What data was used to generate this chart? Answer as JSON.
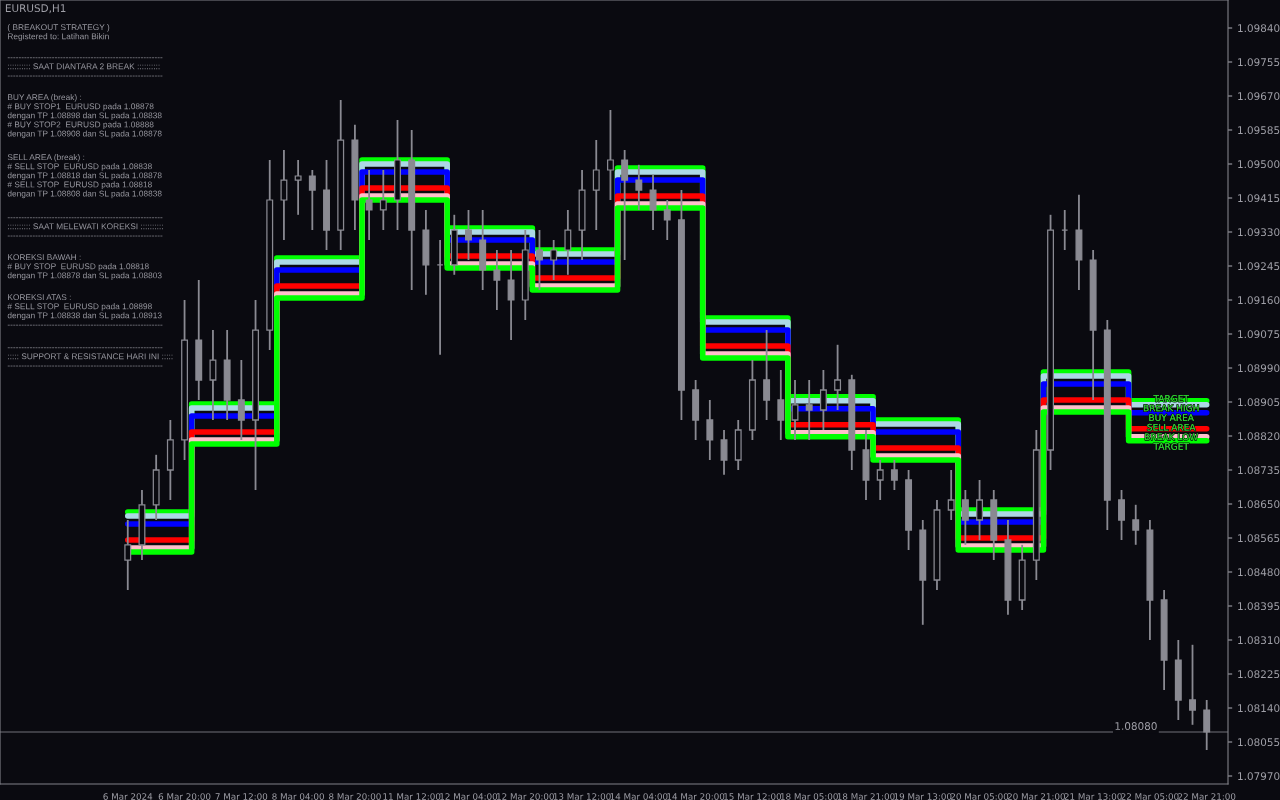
{
  "chart_data": {
    "type": "candlestick",
    "title": "EURUSD,H1",
    "color": "#8a8a92",
    "categories": [
      "6 Mar 2024",
      null,
      null,
      null,
      "6 Mar 20:00",
      null,
      null,
      null,
      "7 Mar 12:00",
      null,
      null,
      null,
      "8 Mar 04:00",
      null,
      null,
      null,
      "8 Mar 20:00",
      null,
      null,
      null,
      "11 Mar 12:00",
      null,
      null,
      null,
      "12 Mar 04:00",
      null,
      null,
      null,
      "12 Mar 20:00",
      null,
      null,
      null,
      "13 Mar 12:00",
      null,
      null,
      null,
      "14 Mar 04:00",
      null,
      null,
      null,
      "14 Mar 20:00",
      null,
      null,
      null,
      "15 Mar 12:00",
      null,
      null,
      null,
      "18 Mar 05:00",
      null,
      null,
      null,
      "18 Mar 21:00",
      null,
      null,
      null,
      "19 Mar 13:00",
      null,
      null,
      null,
      "20 Mar 05:00",
      null,
      null,
      null,
      "20 Mar 21:00",
      null,
      null,
      null,
      "21 Mar 13:00",
      null,
      null,
      null,
      "22 Mar 05:00",
      null,
      null,
      null,
      "22 Mar 21:00"
    ],
    "ohlc": [
      [
        1.0851,
        1.0861,
        1.08435,
        1.08548
      ],
      [
        1.08548,
        1.08685,
        1.0851,
        1.08648
      ],
      [
        1.08648,
        1.08773,
        1.0861,
        1.08735
      ],
      [
        1.08735,
        1.0886,
        1.0866,
        1.0881
      ],
      [
        1.0881,
        1.0916,
        1.0876,
        1.0906
      ],
      [
        1.0906,
        1.0921,
        1.0891,
        1.0896
      ],
      [
        1.0896,
        1.09085,
        1.0886,
        1.0901
      ],
      [
        1.0901,
        1.09085,
        1.0886,
        1.0891
      ],
      [
        1.0891,
        1.0901,
        1.0881,
        1.0886
      ],
      [
        1.0886,
        1.0916,
        1.08685,
        1.09085
      ],
      [
        1.09085,
        1.0951,
        1.09035,
        1.0941
      ],
      [
        1.0941,
        1.09535,
        1.0931,
        1.0946
      ],
      [
        1.0946,
        1.0951,
        1.09373,
        1.0947
      ],
      [
        1.0947,
        1.09485,
        1.09335,
        1.09435
      ],
      [
        1.09435,
        1.0951,
        1.09285,
        1.09335
      ],
      [
        1.09335,
        1.0966,
        1.09285,
        1.0956
      ],
      [
        1.0956,
        1.09598,
        1.09335,
        1.0941
      ],
      [
        1.0941,
        1.09485,
        1.0931,
        1.09385
      ],
      [
        1.09385,
        1.09485,
        1.09335,
        1.0941
      ],
      [
        1.0941,
        1.0961,
        1.09335,
        1.0951
      ],
      [
        1.0951,
        1.09585,
        1.09185,
        1.09335
      ],
      [
        1.09335,
        1.09385,
        1.09173,
        1.09248
      ],
      [
        1.09248,
        1.0931,
        1.09023,
        1.09248
      ],
      [
        1.09248,
        1.09373,
        1.09223,
        1.09335
      ],
      [
        1.09335,
        1.09385,
        1.0926,
        1.0931
      ],
      [
        1.0931,
        1.09385,
        1.09185,
        1.09235
      ],
      [
        1.09235,
        1.09285,
        1.09135,
        1.0921
      ],
      [
        1.0921,
        1.09285,
        1.0906,
        1.0916
      ],
      [
        1.0916,
        1.09335,
        1.0911,
        1.09285
      ],
      [
        1.09285,
        1.09335,
        1.09185,
        1.0926
      ],
      [
        1.0926,
        1.0931,
        1.0921,
        1.09285
      ],
      [
        1.09285,
        1.09385,
        1.09223,
        1.09335
      ],
      [
        1.09335,
        1.09485,
        1.0926,
        1.09435
      ],
      [
        1.09435,
        1.0956,
        1.09335,
        1.09485
      ],
      [
        1.09485,
        1.09635,
        1.0941,
        1.0951
      ],
      [
        1.0951,
        1.09535,
        1.0926,
        1.0946
      ],
      [
        1.0946,
        1.09498,
        1.09385,
        1.09435
      ],
      [
        1.09435,
        1.09473,
        1.09335,
        1.09385
      ],
      [
        1.09385,
        1.0941,
        1.0931,
        1.0936
      ],
      [
        1.0936,
        1.09435,
        1.0886,
        1.08935
      ],
      [
        1.08935,
        1.0896,
        1.0881,
        1.0886
      ],
      [
        1.0886,
        1.0891,
        1.0876,
        1.0881
      ],
      [
        1.0881,
        1.08835,
        1.08723,
        1.0876
      ],
      [
        1.0876,
        1.0886,
        1.08735,
        1.08835
      ],
      [
        1.08835,
        1.0901,
        1.0881,
        1.0896
      ],
      [
        1.0896,
        1.09085,
        1.0886,
        1.0891
      ],
      [
        1.0891,
        1.08985,
        1.0881,
        1.0886
      ],
      [
        1.0886,
        1.0896,
        1.0881,
        1.08898
      ],
      [
        1.08898,
        1.0896,
        1.0881,
        1.08885
      ],
      [
        1.08885,
        1.08985,
        1.08835,
        1.08935
      ],
      [
        1.08935,
        1.09048,
        1.08885,
        1.0896
      ],
      [
        1.0896,
        1.08973,
        1.08735,
        1.08785
      ],
      [
        1.08785,
        1.08835,
        1.0866,
        1.0871
      ],
      [
        1.0871,
        1.0876,
        1.0866,
        1.08735
      ],
      [
        1.08735,
        1.0876,
        1.08685,
        1.0871
      ],
      [
        1.0871,
        1.08735,
        1.08535,
        1.08585
      ],
      [
        1.08585,
        1.0861,
        1.08348,
        1.0846
      ],
      [
        1.0846,
        1.0866,
        1.08435,
        1.08635
      ],
      [
        1.08635,
        1.08735,
        1.0861,
        1.0866
      ],
      [
        1.0866,
        1.08685,
        1.08548,
        1.0861
      ],
      [
        1.0861,
        1.0871,
        1.0856,
        1.0866
      ],
      [
        1.0866,
        1.08685,
        1.0851,
        1.0856
      ],
      [
        1.0856,
        1.0861,
        1.08373,
        1.0841
      ],
      [
        1.0841,
        1.08548,
        1.08385,
        1.0851
      ],
      [
        1.0851,
        1.08835,
        1.0846,
        1.08785
      ],
      [
        1.08785,
        1.09373,
        1.08735,
        1.09335
      ],
      [
        1.09335,
        1.09385,
        1.09285,
        1.09335
      ],
      [
        1.09335,
        1.09423,
        1.09185,
        1.0926
      ],
      [
        1.0926,
        1.09285,
        1.0891,
        1.09085
      ],
      [
        1.09085,
        1.0911,
        1.08585,
        1.0866
      ],
      [
        1.0866,
        1.08685,
        1.0856,
        1.0861
      ],
      [
        1.0861,
        1.08648,
        1.08548,
        1.08585
      ],
      [
        1.08585,
        1.0861,
        1.0831,
        1.0841
      ],
      [
        1.0841,
        1.08435,
        1.08185,
        1.0826
      ],
      [
        1.0826,
        1.0831,
        1.0811,
        1.0816
      ],
      [
        1.0816,
        1.08298,
        1.08098,
        1.08135
      ],
      [
        1.08135,
        1.0816,
        1.08035,
        1.0808
      ]
    ],
    "series": [
      {
        "type": "step",
        "color": "#00ff00",
        "values": [
          1.0863,
          1.0863,
          1.0863,
          1.0863,
          1.0863,
          1.089,
          1.089,
          1.089,
          1.089,
          1.089,
          1.089,
          1.09265,
          1.09265,
          1.09265,
          1.09265,
          1.09265,
          1.09265,
          1.0951,
          1.0951,
          1.0951,
          1.0951,
          1.0951,
          1.0951,
          1.0934,
          1.0934,
          1.0934,
          1.0934,
          1.0934,
          1.0934,
          1.09285,
          1.09285,
          1.09285,
          1.09285,
          1.09285,
          1.09285,
          1.0949,
          1.0949,
          1.0949,
          1.0949,
          1.0949,
          1.0949,
          1.09115,
          1.09115,
          1.09115,
          1.09115,
          1.09115,
          1.09115,
          1.08918,
          1.08918,
          1.08918,
          1.08918,
          1.08918,
          1.08918,
          1.0886,
          1.0886,
          1.0886,
          1.0886,
          1.0886,
          1.0886,
          1.08635,
          1.08635,
          1.08635,
          1.08635,
          1.08635,
          1.08635,
          1.0898,
          1.0898,
          1.0898,
          1.0898,
          1.0898,
          1.0898,
          1.08908,
          1.08908,
          1.08908,
          1.08908,
          1.08908,
          1.08908
        ]
      },
      {
        "type": "step",
        "color": "#add8e6",
        "values": [
          1.0862,
          1.0862,
          1.0862,
          1.0862,
          1.0862,
          1.0889,
          1.0889,
          1.0889,
          1.0889,
          1.0889,
          1.0889,
          1.09255,
          1.09255,
          1.09255,
          1.09255,
          1.09255,
          1.09255,
          1.095,
          1.095,
          1.095,
          1.095,
          1.095,
          1.095,
          1.0933,
          1.0933,
          1.0933,
          1.0933,
          1.0933,
          1.0933,
          1.09275,
          1.09275,
          1.09275,
          1.09275,
          1.09275,
          1.09275,
          1.0948,
          1.0948,
          1.0948,
          1.0948,
          1.0948,
          1.0948,
          1.09105,
          1.09105,
          1.09105,
          1.09105,
          1.09105,
          1.09105,
          1.08908,
          1.08908,
          1.08908,
          1.08908,
          1.08908,
          1.08908,
          1.0885,
          1.0885,
          1.0885,
          1.0885,
          1.0885,
          1.0885,
          1.08625,
          1.08625,
          1.08625,
          1.08625,
          1.08625,
          1.08625,
          1.0897,
          1.0897,
          1.0897,
          1.0897,
          1.0897,
          1.0897,
          1.08898,
          1.08898,
          1.08898,
          1.08898,
          1.08898,
          1.08898
        ]
      },
      {
        "type": "step",
        "color": "#0000ff",
        "values": [
          1.086,
          1.086,
          1.086,
          1.086,
          1.086,
          1.0887,
          1.0887,
          1.0887,
          1.0887,
          1.0887,
          1.0887,
          1.09235,
          1.09235,
          1.09235,
          1.09235,
          1.09235,
          1.09235,
          1.0948,
          1.0948,
          1.0948,
          1.0948,
          1.0948,
          1.0948,
          1.0931,
          1.0931,
          1.0931,
          1.0931,
          1.0931,
          1.0931,
          1.09255,
          1.09255,
          1.09255,
          1.09255,
          1.09255,
          1.09255,
          1.0946,
          1.0946,
          1.0946,
          1.0946,
          1.0946,
          1.0946,
          1.09085,
          1.09085,
          1.09085,
          1.09085,
          1.09085,
          1.09085,
          1.08888,
          1.08888,
          1.08888,
          1.08888,
          1.08888,
          1.08888,
          1.0883,
          1.0883,
          1.0883,
          1.0883,
          1.0883,
          1.0883,
          1.08605,
          1.08605,
          1.08605,
          1.08605,
          1.08605,
          1.08605,
          1.0895,
          1.0895,
          1.0895,
          1.0895,
          1.0895,
          1.0895,
          1.08878,
          1.08878,
          1.08878,
          1.08878,
          1.08878,
          1.08878
        ]
      },
      {
        "type": "step",
        "color": "#ff0000",
        "values": [
          1.0856,
          1.0856,
          1.0856,
          1.0856,
          1.0856,
          1.0883,
          1.0883,
          1.0883,
          1.0883,
          1.0883,
          1.0883,
          1.09195,
          1.09195,
          1.09195,
          1.09195,
          1.09195,
          1.09195,
          1.0944,
          1.0944,
          1.0944,
          1.0944,
          1.0944,
          1.0944,
          1.0927,
          1.0927,
          1.0927,
          1.0927,
          1.0927,
          1.0927,
          1.09215,
          1.09215,
          1.09215,
          1.09215,
          1.09215,
          1.09215,
          1.0942,
          1.0942,
          1.0942,
          1.0942,
          1.0942,
          1.0942,
          1.09045,
          1.09045,
          1.09045,
          1.09045,
          1.09045,
          1.09045,
          1.08848,
          1.08848,
          1.08848,
          1.08848,
          1.08848,
          1.08848,
          1.0879,
          1.0879,
          1.0879,
          1.0879,
          1.0879,
          1.0879,
          1.08565,
          1.08565,
          1.08565,
          1.08565,
          1.08565,
          1.08565,
          1.0891,
          1.0891,
          1.0891,
          1.0891,
          1.0891,
          1.0891,
          1.08838,
          1.08838,
          1.08838,
          1.08838,
          1.08838,
          1.08838
        ]
      },
      {
        "type": "step",
        "color": "#ffc0cb",
        "values": [
          1.0854,
          1.0854,
          1.0854,
          1.0854,
          1.0854,
          1.0881,
          1.0881,
          1.0881,
          1.0881,
          1.0881,
          1.0881,
          1.09175,
          1.09175,
          1.09175,
          1.09175,
          1.09175,
          1.09175,
          1.0942,
          1.0942,
          1.0942,
          1.0942,
          1.0942,
          1.0942,
          1.0925,
          1.0925,
          1.0925,
          1.0925,
          1.0925,
          1.0925,
          1.09195,
          1.09195,
          1.09195,
          1.09195,
          1.09195,
          1.09195,
          1.094,
          1.094,
          1.094,
          1.094,
          1.094,
          1.094,
          1.09025,
          1.09025,
          1.09025,
          1.09025,
          1.09025,
          1.09025,
          1.08828,
          1.08828,
          1.08828,
          1.08828,
          1.08828,
          1.08828,
          1.0877,
          1.0877,
          1.0877,
          1.0877,
          1.0877,
          1.0877,
          1.08545,
          1.08545,
          1.08545,
          1.08545,
          1.08545,
          1.08545,
          1.0889,
          1.0889,
          1.0889,
          1.0889,
          1.0889,
          1.0889,
          1.08818,
          1.08818,
          1.08818,
          1.08818,
          1.08818,
          1.08818
        ]
      },
      {
        "type": "step",
        "color": "#00ff00",
        "values": [
          1.0853,
          1.0853,
          1.0853,
          1.0853,
          1.0853,
          1.088,
          1.088,
          1.088,
          1.088,
          1.088,
          1.088,
          1.09165,
          1.09165,
          1.09165,
          1.09165,
          1.09165,
          1.09165,
          1.0941,
          1.0941,
          1.0941,
          1.0941,
          1.0941,
          1.0941,
          1.0924,
          1.0924,
          1.0924,
          1.0924,
          1.0924,
          1.0924,
          1.09185,
          1.09185,
          1.09185,
          1.09185,
          1.09185,
          1.09185,
          1.0939,
          1.0939,
          1.0939,
          1.0939,
          1.0939,
          1.0939,
          1.09015,
          1.09015,
          1.09015,
          1.09015,
          1.09015,
          1.09015,
          1.08818,
          1.08818,
          1.08818,
          1.08818,
          1.08818,
          1.08818,
          1.0876,
          1.0876,
          1.0876,
          1.0876,
          1.0876,
          1.0876,
          1.08535,
          1.08535,
          1.08535,
          1.08535,
          1.08535,
          1.08535,
          1.0888,
          1.0888,
          1.0888,
          1.0888,
          1.0888,
          1.0888,
          1.08808,
          1.08808,
          1.08808,
          1.08808,
          1.08808,
          1.08808
        ]
      }
    ],
    "ylim": [
      1.0795,
      1.0991
    ],
    "yticks": [
      {
        "value": 1.0797,
        "label": "1.07970"
      },
      {
        "value": 1.08055,
        "label": "1.08055"
      },
      {
        "value": 1.0814,
        "label": "1.08140"
      },
      {
        "value": 1.08225,
        "label": "1.08225"
      },
      {
        "value": 1.0831,
        "label": "1.08310"
      },
      {
        "value": 1.08395,
        "label": "1.08395"
      },
      {
        "value": 1.0848,
        "label": "1.08480"
      },
      {
        "value": 1.08565,
        "label": "1.08565"
      },
      {
        "value": 1.0865,
        "label": "1.08650"
      },
      {
        "value": 1.08735,
        "label": "1.08735"
      },
      {
        "value": 1.0882,
        "label": "1.08820"
      },
      {
        "value": 1.08905,
        "label": "1.08905"
      },
      {
        "value": 1.0899,
        "label": "1.08990"
      },
      {
        "value": 1.09075,
        "label": "1.09075"
      },
      {
        "value": 1.0916,
        "label": "1.09160"
      },
      {
        "value": 1.09245,
        "label": "1.09245"
      },
      {
        "value": 1.0933,
        "label": "1.09330"
      },
      {
        "value": 1.09415,
        "label": "1.09415"
      },
      {
        "value": 1.095,
        "label": "1.09500"
      },
      {
        "value": 1.09585,
        "label": "1.09585"
      },
      {
        "value": 1.0967,
        "label": "1.09670"
      },
      {
        "value": 1.09755,
        "label": "1.09755"
      },
      {
        "value": 1.0984,
        "label": "1.09840"
      }
    ],
    "ref_lines": [
      {
        "axis": "y",
        "value": 1.0808,
        "label": "1.08080",
        "color": "#707078"
      }
    ],
    "annotations": [
      "( BREAKOUT STRATEGY )\nRegistered to: Latihan Bikin",
      "--------------------------------------------------------\n:::::::::: SAAT DIANTARA 2 BREAK ::::::::::\n--------------------------------------------------------",
      "BUY AREA (break) :\n# BUY STOP1  EURUSD pada 1.08878\ndengan TP 1.08898 dan SL pada 1.08838\n# BUY STOP2  EURUSD pada 1.08888\ndengan TP 1.08908 dan SL pada 1.08878",
      "SELL AREA (break) :\n# SELL STOP  EURUSD pada 1.08838\ndengan TP 1.08818 dan SL pada 1.08878\n# SELL STOP  EURUSD pada 1.08818\ndengan TP 1.08808 dan SL pada 1.08838",
      "--------------------------------------------------------\n:::::::::: SAAT MELEWATI KOREKSI ::::::::::\n--------------------------------------------------------",
      "KOREKSI BAWAH :\n# BUY STOP  EURUSD pada 1.08818\ndengan TP 1.08878 dan SL pada 1.08803",
      "KOREKSI ATAS :\n# SELL STOP  EURUSD pada 1.08898\ndengan TP 1.08838 dan SL pada 1.08913\n--------------------------------------------------------",
      "--------------------------------------------------------\n::::: SUPPORT & RESISTANCE HARI INI :::::\n--------------------------------------------------------",
      {
        "text": "TARGET",
        "y": 1.08912
      },
      {
        "text": "BREAK HIGH",
        "y": 1.08888
      },
      {
        "text": "BUY AREA",
        "y": 1.08864
      },
      {
        "text": "SELL AREA",
        "y": 1.0884
      },
      {
        "text": "BREAK LOW",
        "y": 1.08816
      },
      {
        "text": "TARGET",
        "y": 1.08792
      }
    ]
  }
}
